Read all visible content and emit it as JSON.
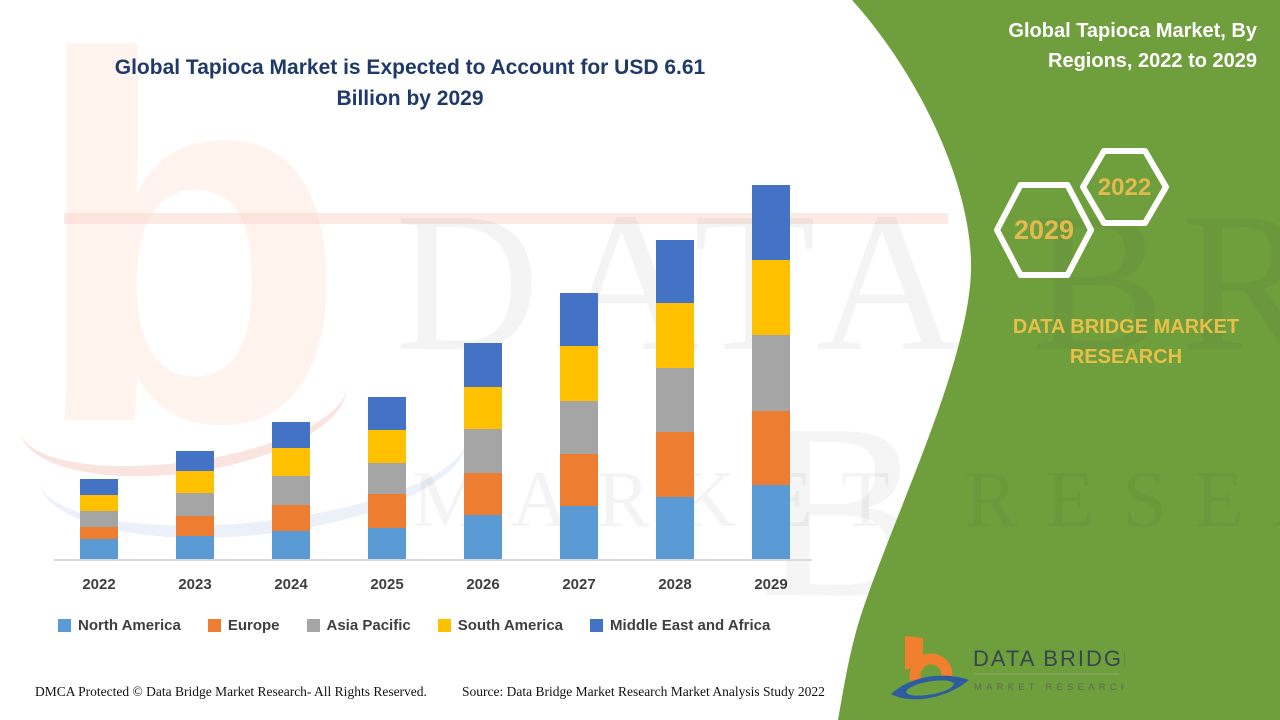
{
  "page": {
    "title_line1": "Global Tapioca Market is Expected to Account for USD 6.61",
    "title_line2": "Billion by 2029"
  },
  "side_panel": {
    "title_line1": "Global Tapioca Market, By",
    "title_line2": "Regions, 2022 to 2029",
    "hexagon_front": "2029",
    "hexagon_back": "2022",
    "brand_line1": "DATA BRIDGE MARKET",
    "brand_line2": "RESEARCH",
    "logo_name": "DATA BRIDGE",
    "logo_tagline": "MARKET RESEARCH"
  },
  "footer": {
    "dmca": "DMCA Protected © Data Bridge Market Research- All Rights Reserved.",
    "source": "Source: Data Bridge Market Research Market Analysis Study 2022"
  },
  "watermark": {
    "row1": "DATA BRIDGE",
    "row2": "MARKET RESEARCH",
    "row3": "BRI",
    "letter_b": "b"
  },
  "colors": {
    "green_panel": "#6f9e3d",
    "title_navy": "#1f3a68",
    "gold_accent": "#e3ba4d",
    "axis_gray": "#d9d9d9",
    "label_gray": "#3f3f3f",
    "logo_orange": "#f07f2e",
    "logo_blue": "#2e5d9f"
  },
  "chart_data": {
    "type": "bar",
    "stacked": true,
    "title": "Global Tapioca Market is Expected to Account for USD 6.61 Billion by 2029",
    "unit": "USD Billion",
    "categories": [
      "2022",
      "2023",
      "2024",
      "2025",
      "2026",
      "2027",
      "2028",
      "2029"
    ],
    "series": [
      {
        "name": "North America",
        "color": "#5B9BD5",
        "values": [
          0.35,
          0.41,
          0.5,
          0.55,
          0.77,
          0.93,
          1.1,
          1.3
        ]
      },
      {
        "name": "Europe",
        "color": "#ED7D31",
        "values": [
          0.22,
          0.35,
          0.46,
          0.6,
          0.75,
          0.93,
          1.14,
          1.32
        ]
      },
      {
        "name": "Asia Pacific",
        "color": "#A5A5A5",
        "values": [
          0.28,
          0.41,
          0.5,
          0.55,
          0.77,
          0.94,
          1.14,
          1.34
        ]
      },
      {
        "name": "South America",
        "color": "#FFC000",
        "values": [
          0.29,
          0.39,
          0.5,
          0.58,
          0.74,
          0.96,
          1.14,
          1.33
        ]
      },
      {
        "name": "Middle East and Africa",
        "color": "#4472C4",
        "values": [
          0.27,
          0.35,
          0.46,
          0.58,
          0.78,
          0.94,
          1.12,
          1.32
        ]
      }
    ],
    "totals_estimated": [
      1.41,
      1.91,
      2.42,
      2.86,
      3.81,
      4.7,
      5.64,
      6.61
    ],
    "annotation": "2029 total = USD 6.61 Billion",
    "value_axis_visible": false,
    "grid": false,
    "legend_position": "bottom"
  }
}
